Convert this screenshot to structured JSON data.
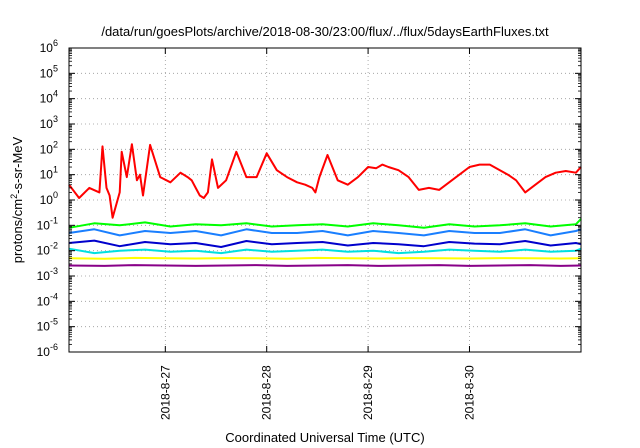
{
  "chart_data": {
    "type": "line",
    "title": "/data/run/goesPlots/archive/2018-08-30/23:00/flux/../flux/5daysEarthFluxes.txt",
    "xlabel": "Coordinated Universal Time (UTC)",
    "ylabel": "protons/cm²-s-sr-MeV",
    "ylabel_parts": {
      "pre": "protons/cm",
      "sup": "2",
      "post": "-s-sr-MeV"
    },
    "y_scale": "log",
    "ylim": [
      1e-06,
      1000000.0
    ],
    "y_ticks": [
      {
        "base": "10",
        "exp": "-6",
        "value": 1e-06
      },
      {
        "base": "10",
        "exp": "-5",
        "value": 1e-05
      },
      {
        "base": "10",
        "exp": "-4",
        "value": 0.0001
      },
      {
        "base": "10",
        "exp": "-3",
        "value": 0.001
      },
      {
        "base": "10",
        "exp": "-2",
        "value": 0.01
      },
      {
        "base": "10",
        "exp": "-1",
        "value": 0.1
      },
      {
        "base": "10",
        "exp": "0",
        "value": 1
      },
      {
        "base": "10",
        "exp": "1",
        "value": 10
      },
      {
        "base": "10",
        "exp": "2",
        "value": 100
      },
      {
        "base": "10",
        "exp": "3",
        "value": 1000
      },
      {
        "base": "10",
        "exp": "4",
        "value": 10000
      },
      {
        "base": "10",
        "exp": "5",
        "value": 100000
      },
      {
        "base": "10",
        "exp": "6",
        "value": 1000000
      }
    ],
    "xlim": [
      -0.95,
      4.1
    ],
    "x_ticks": [
      {
        "label": "2018-8-27",
        "value": 0
      },
      {
        "label": "2018-8-28",
        "value": 1
      },
      {
        "label": "2018-8-29",
        "value": 2
      },
      {
        "label": "2018-8-30",
        "value": 3
      }
    ],
    "grid": true,
    "series": [
      {
        "color": "#ff0000",
        "x": [
          -0.95,
          -0.85,
          -0.75,
          -0.65,
          -0.62,
          -0.58,
          -0.55,
          -0.52,
          -0.45,
          -0.43,
          -0.38,
          -0.33,
          -0.28,
          -0.25,
          -0.22,
          -0.15,
          -0.05,
          0.05,
          0.15,
          0.22,
          0.26,
          0.3,
          0.34,
          0.38,
          0.42,
          0.46,
          0.52,
          0.6,
          0.7,
          0.8,
          0.9,
          1.0,
          1.1,
          1.2,
          1.3,
          1.38,
          1.45,
          1.48,
          1.52,
          1.6,
          1.7,
          1.8,
          1.9,
          2.0,
          2.08,
          2.14,
          2.2,
          2.3,
          2.4,
          2.5,
          2.6,
          2.7,
          2.8,
          2.9,
          3.0,
          3.1,
          3.2,
          3.3,
          3.38,
          3.46,
          3.55,
          3.65,
          3.75,
          3.85,
          3.95,
          4.05,
          4.1
        ],
        "values": [
          4,
          1.2,
          3,
          2,
          130,
          3,
          1.5,
          0.2,
          2,
          80,
          8,
          160,
          6,
          10,
          1.5,
          150,
          8,
          5,
          12,
          8,
          6,
          3,
          1.5,
          1.2,
          2,
          40,
          3,
          6,
          80,
          8,
          8,
          70,
          15,
          8,
          5,
          4,
          3,
          2,
          8,
          60,
          6,
          4,
          8,
          20,
          18,
          25,
          20,
          15,
          8,
          2.5,
          3,
          2.5,
          5,
          10,
          20,
          25,
          25,
          15,
          10,
          6,
          2,
          4,
          8,
          12,
          14,
          12,
          20
        ]
      },
      {
        "color": "#00ff00",
        "x": [
          -0.95,
          -0.7,
          -0.45,
          -0.2,
          0.05,
          0.3,
          0.55,
          0.8,
          1.05,
          1.3,
          1.55,
          1.8,
          2.05,
          2.3,
          2.55,
          2.8,
          3.05,
          3.3,
          3.55,
          3.8,
          4.05,
          4.1
        ],
        "values": [
          0.08,
          0.12,
          0.1,
          0.13,
          0.09,
          0.11,
          0.1,
          0.12,
          0.09,
          0.1,
          0.11,
          0.09,
          0.12,
          0.1,
          0.08,
          0.11,
          0.09,
          0.1,
          0.12,
          0.09,
          0.11,
          0.18
        ]
      },
      {
        "color": "#1a7fff",
        "x": [
          -0.95,
          -0.7,
          -0.45,
          -0.2,
          0.05,
          0.3,
          0.55,
          0.8,
          1.05,
          1.3,
          1.55,
          1.8,
          2.05,
          2.3,
          2.55,
          2.8,
          3.05,
          3.3,
          3.55,
          3.8,
          4.05,
          4.1
        ],
        "values": [
          0.05,
          0.07,
          0.04,
          0.06,
          0.05,
          0.06,
          0.04,
          0.07,
          0.05,
          0.05,
          0.06,
          0.04,
          0.06,
          0.05,
          0.04,
          0.06,
          0.05,
          0.05,
          0.07,
          0.04,
          0.06,
          0.07
        ]
      },
      {
        "color": "#00e0e0",
        "x": [
          -0.95,
          -0.7,
          -0.45,
          -0.2,
          0.05,
          0.3,
          0.55,
          0.8,
          1.05,
          1.3,
          1.55,
          1.8,
          2.05,
          2.3,
          2.55,
          2.8,
          3.05,
          3.3,
          3.55,
          3.8,
          4.05,
          4.1
        ],
        "values": [
          0.012,
          0.008,
          0.01,
          0.011,
          0.009,
          0.01,
          0.008,
          0.011,
          0.009,
          0.01,
          0.011,
          0.009,
          0.01,
          0.008,
          0.009,
          0.011,
          0.01,
          0.009,
          0.011,
          0.009,
          0.01,
          0.012
        ]
      },
      {
        "color": "#0000cc",
        "x": [
          -0.95,
          -0.7,
          -0.45,
          -0.2,
          0.05,
          0.3,
          0.55,
          0.8,
          1.05,
          1.3,
          1.55,
          1.8,
          2.05,
          2.3,
          2.55,
          2.8,
          3.05,
          3.3,
          3.55,
          3.8,
          4.05,
          4.1
        ],
        "values": [
          0.02,
          0.025,
          0.015,
          0.022,
          0.018,
          0.02,
          0.014,
          0.024,
          0.018,
          0.02,
          0.022,
          0.016,
          0.02,
          0.018,
          0.015,
          0.022,
          0.019,
          0.018,
          0.024,
          0.016,
          0.02,
          0.018
        ]
      },
      {
        "color": "#ffff00",
        "x": [
          -0.95,
          -0.6,
          -0.3,
          0.0,
          0.3,
          0.6,
          0.9,
          1.2,
          1.5,
          1.8,
          2.1,
          2.4,
          2.7,
          3.0,
          3.3,
          3.6,
          3.9,
          4.1
        ],
        "values": [
          0.005,
          0.0048,
          0.0052,
          0.005,
          0.0049,
          0.0051,
          0.005,
          0.0048,
          0.0052,
          0.005,
          0.0049,
          0.0051,
          0.005,
          0.0049,
          0.0051,
          0.005,
          0.0049,
          0.005
        ]
      },
      {
        "color": "#880088",
        "x": [
          -0.95,
          -0.6,
          -0.3,
          0.0,
          0.3,
          0.6,
          0.9,
          1.2,
          1.5,
          1.8,
          2.1,
          2.4,
          2.7,
          3.0,
          3.3,
          3.6,
          3.9,
          4.1
        ],
        "values": [
          0.0026,
          0.0025,
          0.0027,
          0.0026,
          0.0025,
          0.0026,
          0.0027,
          0.0025,
          0.0026,
          0.0027,
          0.0025,
          0.0026,
          0.0027,
          0.0025,
          0.0026,
          0.0027,
          0.0025,
          0.0026
        ]
      }
    ]
  }
}
